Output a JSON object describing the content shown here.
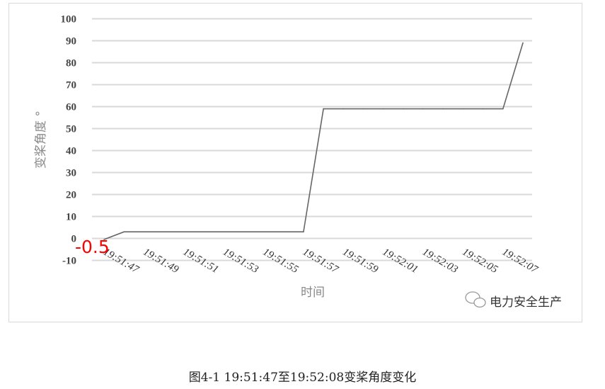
{
  "chart_data": {
    "type": "line",
    "title": "",
    "xlabel": "时间",
    "ylabel": "变桨角度 °",
    "ylim": [
      -10,
      100
    ],
    "yticks": [
      -10,
      0,
      10,
      20,
      30,
      40,
      50,
      60,
      70,
      80,
      90,
      100
    ],
    "grid": true,
    "x": [
      "19:51:47",
      "19:51:48",
      "19:51:49",
      "19:51:50",
      "19:51:51",
      "19:51:52",
      "19:51:53",
      "19:51:54",
      "19:51:55",
      "19:51:56",
      "19:51:57",
      "19:51:58",
      "19:51:59",
      "19:52:00",
      "19:52:01",
      "19:52:02",
      "19:52:03",
      "19:52:04",
      "19:52:05",
      "19:52:06",
      "19:52:07",
      "19:52:08"
    ],
    "xtick_labels": [
      "19:51:47",
      "19:51:49",
      "19:51:51",
      "19:51:53",
      "19:51:55",
      "19:51:57",
      "19:51:59",
      "19:52:01",
      "19:52:03",
      "19:52:05",
      "19:52:07"
    ],
    "values": [
      -0.5,
      3,
      3,
      3,
      3,
      3,
      3,
      3,
      3,
      3,
      3,
      59,
      59,
      59,
      59,
      59,
      59,
      59,
      59,
      59,
      59,
      89
    ],
    "annotation": "-0.5",
    "colors": {
      "line": "#666666",
      "grid": "#d9d9d9",
      "annotation": "#ff0000"
    }
  },
  "watermark": "电力安全生产",
  "caption": "图4-1 19:51:47至19:52:08变桨角度变化"
}
